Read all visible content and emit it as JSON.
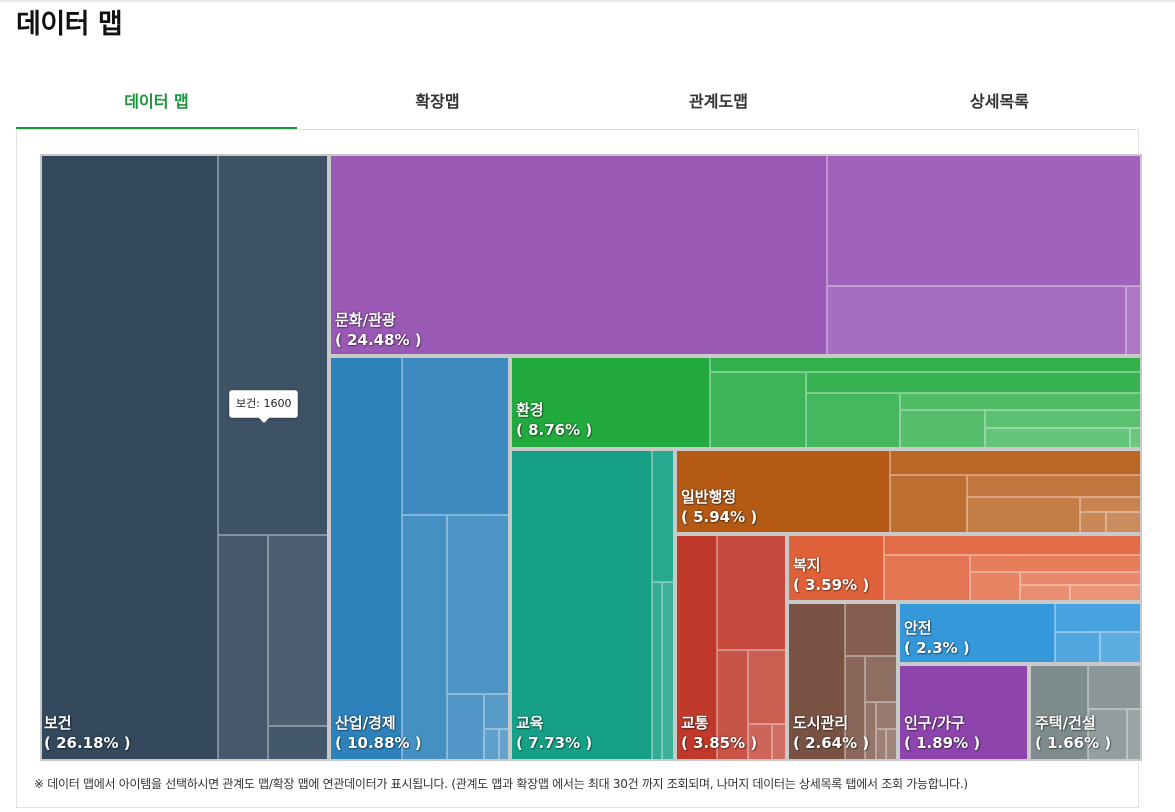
{
  "page": {
    "title": "데이터 맵"
  },
  "tabs": [
    {
      "label": "데이터 맵",
      "active": true
    },
    {
      "label": "확장맵",
      "active": false
    },
    {
      "label": "관계도맵",
      "active": false
    },
    {
      "label": "상세목록",
      "active": false
    }
  ],
  "chart_data": {
    "type": "treemap",
    "title": "",
    "categories": [
      {
        "name": "보건",
        "pct_label": "( 26.18% )",
        "percent": 26.18,
        "color": "#34495e"
      },
      {
        "name": "문화/관광",
        "pct_label": "( 24.48% )",
        "percent": 24.48,
        "color": "#9b59b6"
      },
      {
        "name": "산업/경제",
        "pct_label": "( 10.88% )",
        "percent": 10.88,
        "color": "#2e82bc"
      },
      {
        "name": "환경",
        "pct_label": "( 8.76% )",
        "percent": 8.76,
        "color": "#22aa3f"
      },
      {
        "name": "교육",
        "pct_label": "( 7.73% )",
        "percent": 7.73,
        "color": "#16a086"
      },
      {
        "name": "일반행정",
        "pct_label": "( 5.94% )",
        "percent": 5.94,
        "color": "#b55a15"
      },
      {
        "name": "교통",
        "pct_label": "( 3.85% )",
        "percent": 3.85,
        "color": "#c0392b"
      },
      {
        "name": "복지",
        "pct_label": "( 3.59% )",
        "percent": 3.59,
        "color": "#e0623a"
      },
      {
        "name": "도시관리",
        "pct_label": "( 2.64% )",
        "percent": 2.64,
        "color": "#7a5244"
      },
      {
        "name": "안전",
        "pct_label": "( 2.3% )",
        "percent": 2.3,
        "color": "#3498db"
      },
      {
        "name": "인구/가구",
        "pct_label": "( 1.89% )",
        "percent": 1.89,
        "color": "#8e44ad"
      },
      {
        "name": "주택/건설",
        "pct_label": "( 1.66% )",
        "percent": 1.66,
        "color": "#7f8c8d"
      }
    ]
  },
  "tooltip": {
    "text": "보건: 1600"
  },
  "footnote": "※ 데이터 맵에서 아이템을 선택하시면 관계도 맵/확장 맵에 연관데이터가 표시됩니다. (관계도 맵과 확장맵 에서는 최대 30건 까지 조회되며, 나머지 데이터는 상세목록 탭에서 조회 가능합니다.)"
}
